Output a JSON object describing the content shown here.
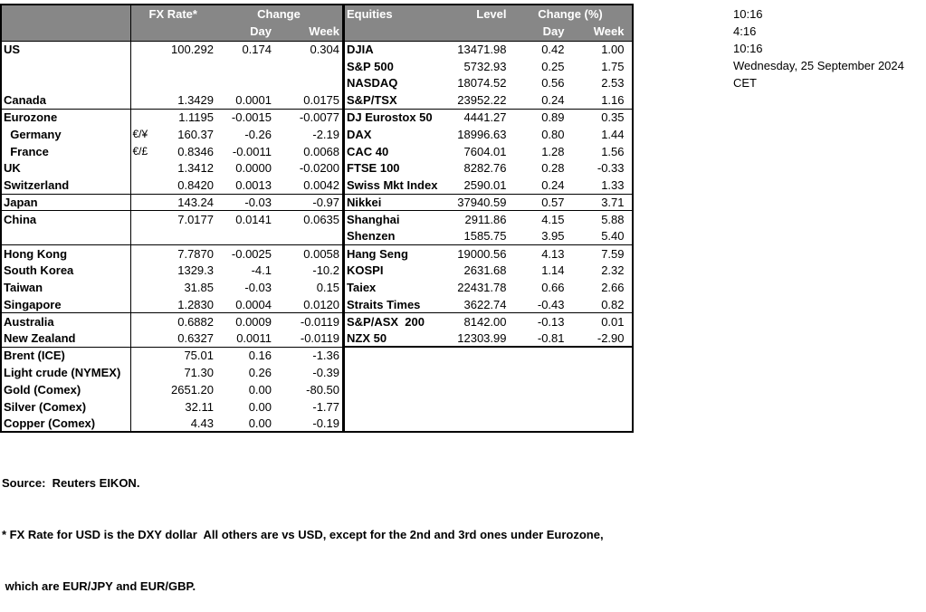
{
  "colors": {
    "header_bg": "#878787",
    "header_text": "#ffffff",
    "border": "#000000",
    "text": "#000000",
    "background": "#ffffff"
  },
  "meta": {
    "timestamps": [
      "10:16",
      "4:16",
      "10:16",
      "Wednesday, 25 September 2024",
      "CET"
    ]
  },
  "fx_table": {
    "headers": {
      "rate": "FX Rate*",
      "change": "Change",
      "day": "Day",
      "week": "Week"
    },
    "rows": [
      {
        "label": "US",
        "pair": "",
        "rate": "100.292",
        "day": "0.174",
        "week": "0.304",
        "sep": ""
      },
      {
        "label": "",
        "pair": "",
        "rate": "",
        "day": "",
        "week": "",
        "sep": ""
      },
      {
        "label": "",
        "pair": "",
        "rate": "",
        "day": "",
        "week": "",
        "sep": ""
      },
      {
        "label": "Canada",
        "pair": "",
        "rate": "1.3429",
        "day": "0.0001",
        "week": "0.0175",
        "sep": "thin"
      },
      {
        "label": "Eurozone",
        "pair": "",
        "rate": "1.1195",
        "day": "-0.0015",
        "week": "-0.0077",
        "sep": ""
      },
      {
        "label": "  Germany",
        "pair": "€/¥",
        "rate": "160.37",
        "day": "-0.26",
        "week": "-2.19",
        "sep": ""
      },
      {
        "label": "  France",
        "pair": "€/£",
        "rate": "0.8346",
        "day": "-0.0011",
        "week": "0.0068",
        "sep": ""
      },
      {
        "label": "UK",
        "pair": "",
        "rate": "1.3412",
        "day": "0.0000",
        "week": "-0.0200",
        "sep": ""
      },
      {
        "label": "Switzerland",
        "pair": "",
        "rate": "0.8420",
        "day": "0.0013",
        "week": "0.0042",
        "sep": "thin"
      },
      {
        "label": "Japan",
        "pair": "",
        "rate": "143.24",
        "day": "-0.03",
        "week": "-0.97",
        "sep": "thin"
      },
      {
        "label": "China",
        "pair": "",
        "rate": "7.0177",
        "day": "0.0141",
        "week": "0.0635",
        "sep": ""
      },
      {
        "label": "",
        "pair": "",
        "rate": "",
        "day": "",
        "week": "",
        "sep": "thin"
      },
      {
        "label": "Hong Kong",
        "pair": "",
        "rate": "7.7870",
        "day": "-0.0025",
        "week": "0.0058",
        "sep": ""
      },
      {
        "label": "South Korea",
        "pair": "",
        "rate": "1329.3",
        "day": "-4.1",
        "week": "-10.2",
        "sep": ""
      },
      {
        "label": "Taiwan",
        "pair": "",
        "rate": "31.85",
        "day": "-0.03",
        "week": "0.15",
        "sep": ""
      },
      {
        "label": "Singapore",
        "pair": "",
        "rate": "1.2830",
        "day": "0.0004",
        "week": "0.0120",
        "sep": "thin"
      },
      {
        "label": "Australia",
        "pair": "",
        "rate": "0.6882",
        "day": "0.0009",
        "week": "-0.0119",
        "sep": ""
      },
      {
        "label": "New Zealand",
        "pair": "",
        "rate": "0.6327",
        "day": "0.0011",
        "week": "-0.0119",
        "sep": "thin"
      },
      {
        "label": "Brent (ICE)",
        "pair": "",
        "rate": "75.01",
        "day": "0.16",
        "week": "-1.36",
        "sep": ""
      },
      {
        "label": "Light crude (NYMEX)",
        "pair": "",
        "rate": "71.30",
        "day": "0.26",
        "week": "-0.39",
        "sep": ""
      },
      {
        "label": "Gold (Comex)",
        "pair": "",
        "rate": "2651.20",
        "day": "0.00",
        "week": "-80.50",
        "sep": ""
      },
      {
        "label": "Silver (Comex)",
        "pair": "",
        "rate": "32.11",
        "day": "0.00",
        "week": "-1.77",
        "sep": ""
      },
      {
        "label": "Copper (Comex)",
        "pair": "",
        "rate": "4.43",
        "day": "0.00",
        "week": "-0.19",
        "sep": ""
      }
    ]
  },
  "equity_table": {
    "headers": {
      "title": "Equities",
      "level": "Level",
      "change": "Change (%)",
      "day": "Day",
      "week": "Week"
    },
    "rows": [
      {
        "label": "DJIA",
        "level": "13471.98",
        "day": "0.42",
        "week": "1.00",
        "sep": ""
      },
      {
        "label": "S&P 500",
        "level": "5732.93",
        "day": "0.25",
        "week": "1.75",
        "sep": ""
      },
      {
        "label": "NASDAQ",
        "level": "18074.52",
        "day": "0.56",
        "week": "2.53",
        "sep": ""
      },
      {
        "label": "S&P/TSX",
        "level": "23952.22",
        "day": "0.24",
        "week": "1.16",
        "sep": "thin"
      },
      {
        "label": "DJ Eurostox 50",
        "level": "4441.27",
        "day": "0.89",
        "week": "0.35",
        "sep": ""
      },
      {
        "label": "DAX",
        "level": "18996.63",
        "day": "0.80",
        "week": "1.44",
        "sep": ""
      },
      {
        "label": "CAC 40",
        "level": "7604.01",
        "day": "1.28",
        "week": "1.56",
        "sep": ""
      },
      {
        "label": "FTSE 100",
        "level": "8282.76",
        "day": "0.28",
        "week": "-0.33",
        "sep": ""
      },
      {
        "label": "Swiss Mkt Index",
        "level": "2590.01",
        "day": "0.24",
        "week": "1.33",
        "sep": "thin"
      },
      {
        "label": "Nikkei",
        "level": "37940.59",
        "day": "0.57",
        "week": "3.71",
        "sep": "thin"
      },
      {
        "label": "Shanghai",
        "level": "2911.86",
        "day": "4.15",
        "week": "5.88",
        "sep": ""
      },
      {
        "label": "Shenzen",
        "level": "1585.75",
        "day": "3.95",
        "week": "5.40",
        "sep": "thin"
      },
      {
        "label": "Hang Seng",
        "level": "19000.56",
        "day": "4.13",
        "week": "7.59",
        "sep": ""
      },
      {
        "label": "KOSPI",
        "level": "2631.68",
        "day": "1.14",
        "week": "2.32",
        "sep": ""
      },
      {
        "label": "Taiex",
        "level": "22431.78",
        "day": "0.66",
        "week": "2.66",
        "sep": ""
      },
      {
        "label": "Straits Times",
        "level": "3622.74",
        "day": "-0.43",
        "week": "0.82",
        "sep": "thin"
      },
      {
        "label": "S&P/ASX  200",
        "level": "8142.00",
        "day": "-0.13",
        "week": "0.01",
        "sep": ""
      },
      {
        "label": "NZX 50",
        "level": "12303.99",
        "day": "-0.81",
        "week": "-2.90",
        "sep": "thick"
      },
      {
        "label": "",
        "level": "",
        "day": "",
        "week": "",
        "sep": ""
      },
      {
        "label": "",
        "level": "",
        "day": "",
        "week": "",
        "sep": ""
      },
      {
        "label": "",
        "level": "",
        "day": "",
        "week": "",
        "sep": ""
      },
      {
        "label": "",
        "level": "",
        "day": "",
        "week": "",
        "sep": ""
      },
      {
        "label": "",
        "level": "",
        "day": "",
        "week": "",
        "sep": ""
      }
    ]
  },
  "footer": {
    "source": "Source:  Reuters EIKON.",
    "note1": "* FX Rate for USD is the DXY dollar  All others are vs USD, except for the 2nd and 3rd ones under Eurozone,",
    "note2": " which are EUR/JPY and EUR/GBP."
  }
}
